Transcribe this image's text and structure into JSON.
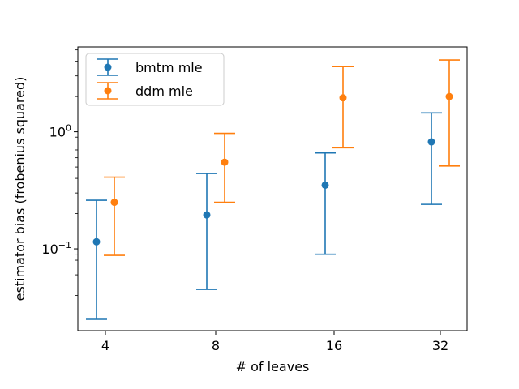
{
  "chart_data": {
    "type": "errorbar",
    "title": "",
    "xlabel": "# of leaves",
    "ylabel": "estimator bias (frobenius squared)",
    "yscale": "log",
    "ylim": [
      0.02,
      5.3
    ],
    "categories": [
      "4",
      "8",
      "16",
      "32"
    ],
    "x_tick_labels": [
      "4",
      "8",
      "16",
      "32"
    ],
    "y_ticks": [
      {
        "value": 0.1,
        "base": "10",
        "exp": "−1"
      },
      {
        "value": 1.0,
        "base": "10",
        "exp": "0"
      }
    ],
    "legend_position": "upper-left",
    "series": [
      {
        "name": "bmtm mle",
        "color": "#1f77b4",
        "values": [
          0.115,
          0.195,
          0.35,
          0.82
        ],
        "lower": [
          0.025,
          0.045,
          0.09,
          0.24
        ],
        "upper": [
          0.26,
          0.44,
          0.66,
          1.45
        ]
      },
      {
        "name": "ddm mle",
        "color": "#ff7f0e",
        "values": [
          0.25,
          0.55,
          1.95,
          2.0
        ],
        "lower": [
          0.088,
          0.25,
          0.73,
          0.51
        ],
        "upper": [
          0.41,
          0.97,
          3.6,
          4.1
        ]
      }
    ]
  }
}
